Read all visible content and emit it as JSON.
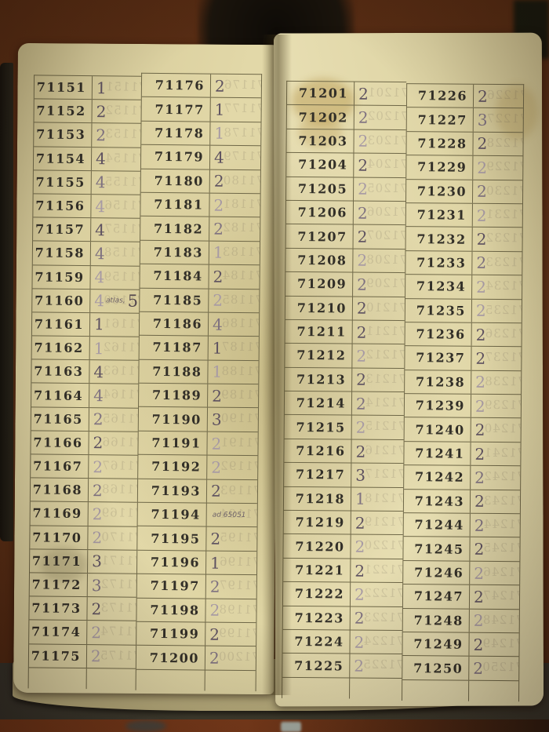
{
  "palette": {
    "wood": "#5e3018",
    "wood_dark": "#3f1f0e",
    "shadow_object": "#151008",
    "surface": "#3c392c",
    "floor": "#77391b",
    "page": "#e2d8a8",
    "page_shade": "#c9bd8c",
    "line": "#6f6848",
    "print_ink": "#322f28",
    "pencil_dark": "#5d5160",
    "pencil_mid": "#7e7180",
    "pencil_light": "#a79aa4"
  },
  "book": {
    "pages": [
      {
        "side": "left",
        "columns": [
          {
            "rows": [
              {
                "number": "71151",
                "value": "1",
                "shade": "dark"
              },
              {
                "number": "71152",
                "value": "2",
                "shade": "dark"
              },
              {
                "number": "71153",
                "value": "2",
                "shade": "mid"
              },
              {
                "number": "71154",
                "value": "4",
                "shade": "dark"
              },
              {
                "number": "71155",
                "value": "4",
                "shade": "mid"
              },
              {
                "number": "71156",
                "value": "4",
                "shade": "light"
              },
              {
                "number": "71157",
                "value": "4",
                "shade": "dark"
              },
              {
                "number": "71158",
                "value": "4",
                "shade": "mid"
              },
              {
                "number": "71159",
                "value": "4",
                "shade": "light"
              },
              {
                "number": "71160",
                "value": "4",
                "shade": "light",
                "note_small": "atlas,",
                "note_large": "5"
              },
              {
                "number": "71161",
                "value": "1",
                "shade": "dark"
              },
              {
                "number": "71162",
                "value": "1",
                "shade": "light"
              },
              {
                "number": "71163",
                "value": "4",
                "shade": "dark"
              },
              {
                "number": "71164",
                "value": "4",
                "shade": "mid"
              },
              {
                "number": "71165",
                "value": "2",
                "shade": "mid"
              },
              {
                "number": "71166",
                "value": "2",
                "shade": "dark"
              },
              {
                "number": "71167",
                "value": "2",
                "shade": "light"
              },
              {
                "number": "71168",
                "value": "2",
                "shade": "mid"
              },
              {
                "number": "71169",
                "value": "2",
                "shade": "light"
              },
              {
                "number": "71170",
                "value": "2",
                "shade": "light"
              },
              {
                "number": "71171",
                "value": "3",
                "shade": "dark"
              },
              {
                "number": "71172",
                "value": "3",
                "shade": "mid"
              },
              {
                "number": "71173",
                "value": "2",
                "shade": "dark"
              },
              {
                "number": "71174",
                "value": "2",
                "shade": "light"
              },
              {
                "number": "71175",
                "value": "2",
                "shade": "light"
              }
            ]
          },
          {
            "rows": [
              {
                "number": "71176",
                "value": "2",
                "shade": "dark"
              },
              {
                "number": "71177",
                "value": "1",
                "shade": "dark"
              },
              {
                "number": "71178",
                "value": "1",
                "shade": "light"
              },
              {
                "number": "71179",
                "value": "4",
                "shade": "dark"
              },
              {
                "number": "71180",
                "value": "2",
                "shade": "dark"
              },
              {
                "number": "71181",
                "value": "2",
                "shade": "light"
              },
              {
                "number": "71182",
                "value": "2",
                "shade": "mid"
              },
              {
                "number": "71183",
                "value": "1",
                "shade": "light"
              },
              {
                "number": "71184",
                "value": "2",
                "shade": "dark"
              },
              {
                "number": "71185",
                "value": "2",
                "shade": "light"
              },
              {
                "number": "71186",
                "value": "4",
                "shade": "mid"
              },
              {
                "number": "71187",
                "value": "1",
                "shade": "dark"
              },
              {
                "number": "71188",
                "value": "1",
                "shade": "light"
              },
              {
                "number": "71189",
                "value": "2",
                "shade": "dark"
              },
              {
                "number": "71190",
                "value": "3",
                "shade": "dark"
              },
              {
                "number": "71191",
                "value": "2",
                "shade": "light"
              },
              {
                "number": "71192",
                "value": "2",
                "shade": "light"
              },
              {
                "number": "71193",
                "value": "2",
                "shade": "dark"
              },
              {
                "number": "71194",
                "value": "",
                "shade": "mid",
                "note_small": "ad 65051"
              },
              {
                "number": "71195",
                "value": "2",
                "shade": "dark"
              },
              {
                "number": "71196",
                "value": "1",
                "shade": "dark"
              },
              {
                "number": "71197",
                "value": "2",
                "shade": "mid"
              },
              {
                "number": "71198",
                "value": "2",
                "shade": "light"
              },
              {
                "number": "71199",
                "value": "2",
                "shade": "dark"
              },
              {
                "number": "71200",
                "value": "2",
                "shade": "mid"
              }
            ]
          }
        ]
      },
      {
        "side": "right",
        "columns": [
          {
            "rows": [
              {
                "number": "71201",
                "value": "2",
                "shade": "dark"
              },
              {
                "number": "71202",
                "value": "2",
                "shade": "mid"
              },
              {
                "number": "71203",
                "value": "2",
                "shade": "light"
              },
              {
                "number": "71204",
                "value": "2",
                "shade": "dark"
              },
              {
                "number": "71205",
                "value": "2",
                "shade": "light"
              },
              {
                "number": "71206",
                "value": "2",
                "shade": "mid"
              },
              {
                "number": "71207",
                "value": "2",
                "shade": "dark"
              },
              {
                "number": "71208",
                "value": "2",
                "shade": "light"
              },
              {
                "number": "71209",
                "value": "2",
                "shade": "mid"
              },
              {
                "number": "71210",
                "value": "2",
                "shade": "dark"
              },
              {
                "number": "71211",
                "value": "2",
                "shade": "dark"
              },
              {
                "number": "71212",
                "value": "2",
                "shade": "light"
              },
              {
                "number": "71213",
                "value": "2",
                "shade": "dark"
              },
              {
                "number": "71214",
                "value": "2",
                "shade": "mid"
              },
              {
                "number": "71215",
                "value": "2",
                "shade": "light"
              },
              {
                "number": "71216",
                "value": "2",
                "shade": "dark"
              },
              {
                "number": "71217",
                "value": "3",
                "shade": "dark"
              },
              {
                "number": "71218",
                "value": "1",
                "shade": "mid"
              },
              {
                "number": "71219",
                "value": "2",
                "shade": "dark"
              },
              {
                "number": "71220",
                "value": "2",
                "shade": "light"
              },
              {
                "number": "71221",
                "value": "2",
                "shade": "dark"
              },
              {
                "number": "71222",
                "value": "2",
                "shade": "light"
              },
              {
                "number": "71223",
                "value": "2",
                "shade": "mid"
              },
              {
                "number": "71224",
                "value": "2",
                "shade": "light"
              },
              {
                "number": "71225",
                "value": "2",
                "shade": "light"
              }
            ]
          },
          {
            "rows": [
              {
                "number": "71226",
                "value": "2",
                "shade": "dark"
              },
              {
                "number": "71227",
                "value": "3",
                "shade": "mid"
              },
              {
                "number": "71228",
                "value": "2",
                "shade": "dark"
              },
              {
                "number": "71229",
                "value": "2",
                "shade": "light"
              },
              {
                "number": "71230",
                "value": "2",
                "shade": "mid"
              },
              {
                "number": "71231",
                "value": "2",
                "shade": "light"
              },
              {
                "number": "71232",
                "value": "2",
                "shade": "dark"
              },
              {
                "number": "71233",
                "value": "2",
                "shade": "mid"
              },
              {
                "number": "71234",
                "value": "2",
                "shade": "light"
              },
              {
                "number": "71235",
                "value": "2",
                "shade": "light"
              },
              {
                "number": "71236",
                "value": "2",
                "shade": "dark"
              },
              {
                "number": "71237",
                "value": "2",
                "shade": "dark"
              },
              {
                "number": "71238",
                "value": "2",
                "shade": "light"
              },
              {
                "number": "71239",
                "value": "2",
                "shade": "light"
              },
              {
                "number": "71240",
                "value": "2",
                "shade": "dark"
              },
              {
                "number": "71241",
                "value": "2",
                "shade": "dark"
              },
              {
                "number": "71242",
                "value": "2",
                "shade": "mid"
              },
              {
                "number": "71243",
                "value": "2",
                "shade": "dark"
              },
              {
                "number": "71244",
                "value": "2",
                "shade": "mid"
              },
              {
                "number": "71245",
                "value": "2",
                "shade": "dark"
              },
              {
                "number": "71246",
                "value": "2",
                "shade": "light"
              },
              {
                "number": "71247",
                "value": "2",
                "shade": "dark"
              },
              {
                "number": "71248",
                "value": "2",
                "shade": "light"
              },
              {
                "number": "71249",
                "value": "2",
                "shade": "dark"
              },
              {
                "number": "71250",
                "value": "2",
                "shade": "mid"
              }
            ]
          }
        ]
      }
    ]
  }
}
